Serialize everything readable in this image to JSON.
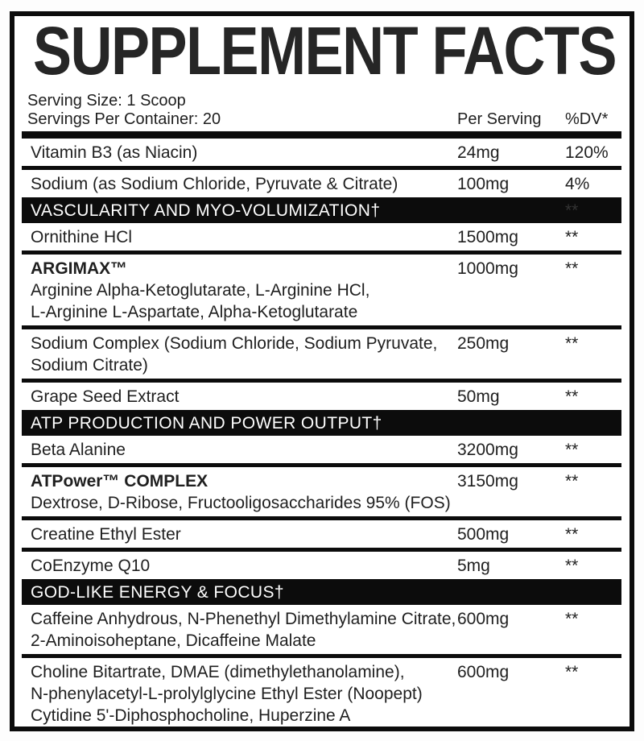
{
  "title": "SUPPLEMENT FACTS",
  "serving": {
    "size": "Serving Size: 1 Scoop",
    "per_container": "Servings Per Container: 20"
  },
  "columns": {
    "amount": "Per Serving",
    "dv": "%DV*"
  },
  "colors": {
    "ink": "#1f1f1f",
    "bar_black": "#0c0c0c",
    "bar_text": "#ffffff",
    "ghost_asterisk": "#343434"
  },
  "rows": [
    {
      "type": "ingredient",
      "name": "Vitamin B3 (as Niacin)",
      "bold": false,
      "sublines": [],
      "amount": "24mg",
      "dv": "120%",
      "sep": true
    },
    {
      "type": "ingredient",
      "name": "Sodium (as Sodium Chloride, Pyruvate & Citrate)",
      "bold": false,
      "sublines": [],
      "amount": "100mg",
      "dv": "4%",
      "sep": false
    },
    {
      "type": "section",
      "label": "VASCULARITY AND MYO-VOLUMIZATION†",
      "ghost_dv": "**"
    },
    {
      "type": "ingredient",
      "name": "Ornithine HCl",
      "bold": false,
      "sublines": [],
      "amount": "1500mg",
      "dv": "**",
      "sep": true
    },
    {
      "type": "ingredient",
      "name": "ARGIMAX™",
      "bold": true,
      "sublines": [
        "Arginine Alpha-Ketoglutarate, L-Arginine HCl,",
        "L-Arginine L-Aspartate, Alpha-Ketoglutarate"
      ],
      "amount": "1000mg",
      "dv": "**",
      "sep": true
    },
    {
      "type": "ingredient",
      "name": "Sodium Complex (Sodium Chloride, Sodium Pyruvate,",
      "bold": false,
      "sublines": [
        "Sodium Citrate)"
      ],
      "amount": "250mg",
      "dv": "**",
      "sep": true
    },
    {
      "type": "ingredient",
      "name": "Grape Seed Extract",
      "bold": false,
      "sublines": [],
      "amount": "50mg",
      "dv": "**",
      "sep": false
    },
    {
      "type": "section",
      "label": "ATP PRODUCTION AND POWER OUTPUT†",
      "ghost_dv": ""
    },
    {
      "type": "ingredient",
      "name": "Beta Alanine",
      "bold": false,
      "sublines": [],
      "amount": "3200mg",
      "dv": "**",
      "sep": true
    },
    {
      "type": "ingredient",
      "name": "ATPower™ COMPLEX",
      "bold": true,
      "sublines": [
        "Dextrose, D-Ribose, Fructooligosaccharides 95% (FOS)"
      ],
      "amount": "3150mg",
      "dv": "**",
      "sep": true
    },
    {
      "type": "ingredient",
      "name": "Creatine Ethyl Ester",
      "bold": false,
      "sublines": [],
      "amount": "500mg",
      "dv": "**",
      "sep": true
    },
    {
      "type": "ingredient",
      "name": "CoEnzyme Q10",
      "bold": false,
      "sublines": [],
      "amount": "5mg",
      "dv": "**",
      "sep": false
    },
    {
      "type": "section",
      "label": "GOD-LIKE ENERGY & FOCUS†",
      "ghost_dv": ""
    },
    {
      "type": "ingredient",
      "name": "Caffeine Anhydrous, N-Phenethyl Dimethylamine Citrate,",
      "bold": false,
      "sublines": [
        "2-Aminoisoheptane, Dicaffeine Malate"
      ],
      "amount": "600mg",
      "dv": "**",
      "sep": true
    },
    {
      "type": "ingredient",
      "name": "Choline Bitartrate, DMAE (dimethylethanolamine),",
      "bold": false,
      "sublines": [
        "N-phenylacetyl-L-prolylglycine Ethyl Ester (Noopept)",
        "Cytidine 5'-Diphosphocholine, Huperzine A"
      ],
      "amount": "600mg",
      "dv": "**",
      "sep": false
    }
  ]
}
